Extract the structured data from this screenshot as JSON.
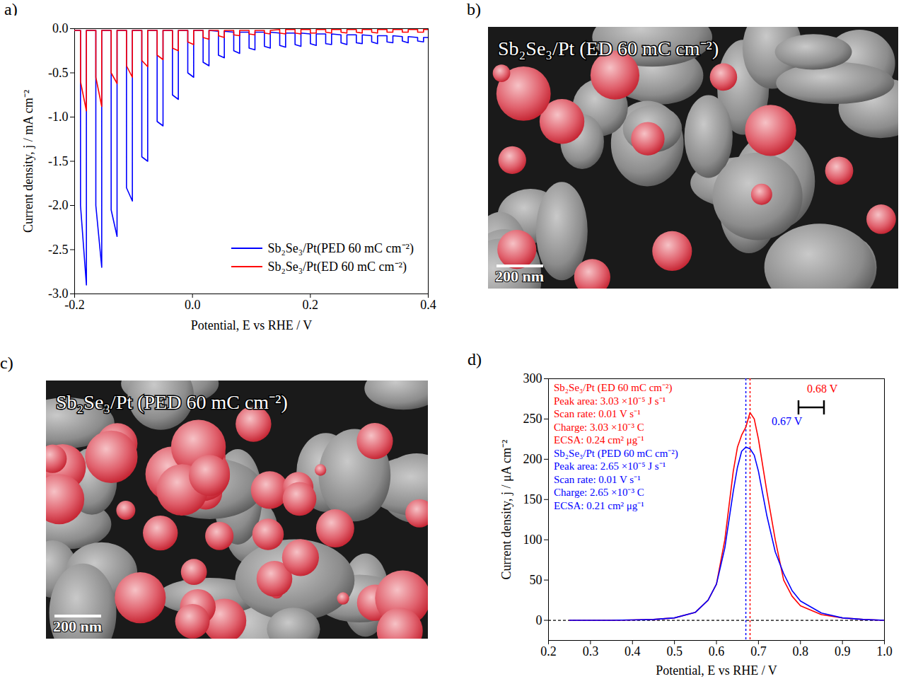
{
  "chart_data": [
    {
      "panel": "a)",
      "type": "line",
      "x_label": "Potential, E vs RHE / V",
      "y_label": "Current density, j / mA cm⁻²",
      "xlim": [
        -0.2,
        0.4
      ],
      "xticks": [
        -0.2,
        {
          "value": 0,
          "label": "0.0"
        },
        0.2,
        0.4
      ],
      "ylim": [
        -3.0,
        0.0
      ],
      "yticks": [
        {
          "value": -3,
          "label": "-3.0"
        },
        -2.5,
        {
          "value": -2,
          "label": "-2.0"
        },
        -1.5,
        {
          "value": -1,
          "label": "-1.0"
        },
        -0.5,
        {
          "value": 0,
          "label": "0.0"
        }
      ],
      "grid": false,
      "legend": "bottom-right",
      "x": [
        -0.2,
        -0.19,
        -0.19,
        -0.18,
        -0.18,
        -0.164,
        -0.164,
        -0.154,
        -0.154,
        -0.138,
        -0.138,
        -0.128,
        -0.128,
        -0.112,
        -0.112,
        -0.102,
        -0.102,
        -0.086,
        -0.086,
        -0.076,
        -0.076,
        -0.06,
        -0.06,
        -0.05,
        -0.05,
        -0.034,
        -0.034,
        -0.024,
        -0.024,
        -0.008,
        -0.008,
        0.002,
        0.002,
        0.018,
        0.018,
        0.028,
        0.028,
        0.044,
        0.044,
        0.054,
        0.054,
        0.07,
        0.07,
        0.08,
        0.08,
        0.096,
        0.096,
        0.106,
        0.106,
        0.122,
        0.122,
        0.132,
        0.132,
        0.148,
        0.148,
        0.158,
        0.158,
        0.174,
        0.174,
        0.184,
        0.184,
        0.2,
        0.2,
        0.21,
        0.21,
        0.226,
        0.226,
        0.236,
        0.236,
        0.252,
        0.252,
        0.262,
        0.262,
        0.278,
        0.278,
        0.288,
        0.288,
        0.304,
        0.304,
        0.314,
        0.314,
        0.33,
        0.33,
        0.34,
        0.34,
        0.356,
        0.356,
        0.366,
        0.366,
        0.382,
        0.382,
        0.392,
        0.392,
        0.4
      ],
      "series": [
        {
          "name": "Sb₂Se₃/Pt(PED 60 mC cm⁻²)",
          "color": "#0000ff",
          "values": [
            -0.02,
            -0.02,
            -2.0,
            -2.9,
            -0.02,
            -0.02,
            -2.0,
            -2.7,
            -0.02,
            -0.02,
            -2.05,
            -2.35,
            -0.02,
            -0.02,
            -1.8,
            -1.95,
            -0.02,
            -0.02,
            -1.45,
            -1.5,
            -0.02,
            -0.02,
            -1.05,
            -1.1,
            -0.02,
            -0.02,
            -0.75,
            -0.8,
            -0.02,
            -0.02,
            -0.5,
            -0.55,
            -0.02,
            -0.02,
            -0.38,
            -0.42,
            -0.02,
            -0.03,
            -0.3,
            -0.33,
            -0.03,
            -0.04,
            -0.25,
            -0.28,
            -0.04,
            -0.04,
            -0.22,
            -0.24,
            -0.04,
            -0.04,
            -0.2,
            -0.22,
            -0.04,
            -0.05,
            -0.19,
            -0.21,
            -0.05,
            -0.05,
            -0.18,
            -0.2,
            -0.05,
            -0.06,
            -0.17,
            -0.19,
            -0.06,
            -0.06,
            -0.17,
            -0.18,
            -0.06,
            -0.07,
            -0.16,
            -0.18,
            -0.07,
            -0.07,
            -0.16,
            -0.17,
            -0.07,
            -0.08,
            -0.15,
            -0.17,
            -0.08,
            -0.08,
            -0.15,
            -0.16,
            -0.08,
            -0.09,
            -0.14,
            -0.16,
            -0.09,
            -0.1,
            -0.14,
            -0.15,
            -0.1,
            -0.1
          ]
        },
        {
          "name": "Sb₂Se₃/Pt(ED 60 mC cm⁻²)",
          "color": "#ff0000",
          "values": [
            -0.02,
            -0.02,
            -0.6,
            -0.93,
            -0.02,
            -0.02,
            -0.55,
            -0.88,
            -0.02,
            -0.02,
            -0.5,
            -0.62,
            -0.02,
            -0.02,
            -0.42,
            -0.55,
            -0.02,
            -0.02,
            -0.36,
            -0.43,
            -0.02,
            -0.02,
            -0.3,
            -0.35,
            -0.02,
            -0.02,
            -0.22,
            -0.25,
            -0.02,
            -0.02,
            -0.15,
            -0.18,
            -0.02,
            -0.02,
            -0.1,
            -0.12,
            -0.02,
            -0.02,
            -0.08,
            -0.1,
            -0.02,
            -0.02,
            -0.07,
            -0.08,
            -0.02,
            -0.02,
            -0.06,
            -0.07,
            -0.02,
            -0.02,
            -0.05,
            -0.06,
            -0.02,
            -0.01,
            -0.05,
            -0.06,
            -0.01,
            -0.01,
            -0.05,
            -0.06,
            -0.01,
            -0.01,
            -0.05,
            -0.05,
            -0.01,
            -0.01,
            -0.04,
            -0.05,
            -0.01,
            -0.01,
            -0.04,
            -0.05,
            -0.01,
            -0.01,
            -0.04,
            -0.05,
            -0.01,
            -0.01,
            -0.04,
            -0.05,
            -0.01,
            -0.01,
            -0.04,
            -0.04,
            -0.01,
            -0.01,
            -0.04,
            -0.04,
            -0.01,
            -0.01,
            -0.04,
            -0.04,
            -0.01,
            -0.01
          ]
        }
      ]
    },
    {
      "panel": "d)",
      "type": "line",
      "x_label": "Potential, E vs RHE / V",
      "y_label": "Current density, j / μA cm⁻²",
      "xlim": [
        0.2,
        1.0
      ],
      "xticks": [
        0.2,
        0.3,
        0.4,
        0.5,
        0.6,
        0.7,
        0.8,
        0.9,
        {
          "value": 1,
          "label": "1.0"
        }
      ],
      "ylim": [
        -25,
        300
      ],
      "yticks": [
        0,
        50,
        100,
        150,
        200,
        250,
        300
      ],
      "grid": false,
      "legend": "top-left",
      "baseline": 0,
      "peak_markers": [
        {
          "x": 0.68,
          "label": "0.68 V",
          "color": "#ff0000"
        },
        {
          "x": 0.67,
          "label": "0.67 V",
          "color": "#0000ff"
        }
      ],
      "x": [
        0.25,
        0.3,
        0.35,
        0.4,
        0.45,
        0.5,
        0.55,
        0.58,
        0.6,
        0.62,
        0.64,
        0.65,
        0.66,
        0.67,
        0.68,
        0.69,
        0.7,
        0.72,
        0.74,
        0.76,
        0.78,
        0.8,
        0.85,
        0.9,
        0.95,
        1.0
      ],
      "series": [
        {
          "name": "Sb₂Se₃/Pt (ED 60 mC cm⁻²)",
          "color": "#ff0000",
          "annotation_lines": [
            "Peak area: 3.03 ×10⁻⁵ J s⁻¹",
            "Scan rate: 0.01 V s⁻¹",
            "Charge: 3.03 ×10⁻³ C",
            "ECSA: 0.24 cm² μg⁻¹"
          ],
          "values": [
            0,
            0,
            0,
            0.5,
            1,
            3,
            10,
            25,
            45,
            100,
            185,
            215,
            230,
            240,
            258,
            250,
            225,
            160,
            100,
            50,
            30,
            18,
            7,
            3,
            1,
            0
          ]
        },
        {
          "name": "Sb₂Se₃/Pt (PED 60 mC cm⁻²)",
          "color": "#0000ff",
          "annotation_lines": [
            "Peak area: 2.65 ×10⁻⁵ J s⁻¹",
            "Scan rate: 0.01 V s⁻¹",
            "Charge: 2.65 ×10⁻³ C",
            "ECSA: 0.21 cm² μg⁻¹"
          ],
          "values": [
            0,
            0,
            0,
            0.5,
            1,
            3,
            10,
            25,
            45,
            90,
            160,
            190,
            210,
            215,
            213,
            205,
            185,
            130,
            85,
            58,
            37,
            24,
            9,
            3,
            1,
            0
          ]
        }
      ]
    }
  ],
  "images": [
    {
      "panel": "b)",
      "title": "Sb₂Se₃/Pt (ED 60 mC cm⁻²)",
      "scale_bar": "200 nm"
    },
    {
      "panel": "c)",
      "title": "Sb₂Se₃/Pt (PED 60 mC cm⁻²)",
      "scale_bar": "200 nm"
    }
  ]
}
